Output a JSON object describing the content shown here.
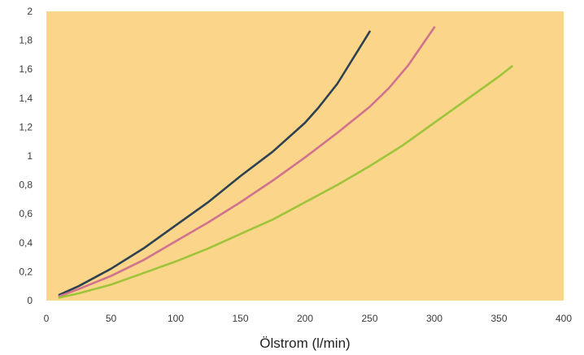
{
  "chart_data": {
    "type": "line",
    "title": "",
    "xlabel": "Ölstrom (l/min)",
    "ylabel": "",
    "xlim": [
      0,
      400
    ],
    "ylim": [
      0,
      2
    ],
    "x_ticks": [
      0,
      50,
      100,
      150,
      200,
      250,
      300,
      350,
      400
    ],
    "x_tick_labels": [
      "0",
      "50",
      "100",
      "150",
      "200",
      "250",
      "300",
      "350",
      "400"
    ],
    "y_ticks": [
      0,
      0.2,
      0.4,
      0.6,
      0.8,
      1,
      1.2,
      1.4,
      1.6,
      1.8,
      2
    ],
    "y_tick_labels": [
      "0",
      "0,2",
      "0,4",
      "0,6",
      "0,8",
      "1",
      "1,2",
      "1,4",
      "1,6",
      "1,8",
      "2"
    ],
    "grid": false,
    "legend": "none",
    "colors": {
      "plot_background": "#fbd58a",
      "series": [
        "#2e4150",
        "#d0728e",
        "#9ec43a"
      ]
    },
    "series": [
      {
        "x": [
          10,
          25,
          50,
          75,
          100,
          125,
          150,
          175,
          200,
          210,
          225,
          250
        ],
        "y": [
          0.04,
          0.1,
          0.22,
          0.36,
          0.52,
          0.68,
          0.86,
          1.03,
          1.23,
          1.33,
          1.5,
          1.86
        ]
      },
      {
        "x": [
          10,
          25,
          50,
          75,
          100,
          125,
          150,
          175,
          200,
          225,
          250,
          265,
          280,
          300
        ],
        "y": [
          0.03,
          0.08,
          0.17,
          0.28,
          0.41,
          0.54,
          0.68,
          0.83,
          0.99,
          1.16,
          1.34,
          1.47,
          1.63,
          1.89
        ]
      },
      {
        "x": [
          10,
          25,
          50,
          75,
          100,
          125,
          150,
          175,
          200,
          225,
          250,
          275,
          300,
          325,
          350,
          360
        ],
        "y": [
          0.02,
          0.05,
          0.11,
          0.19,
          0.27,
          0.36,
          0.46,
          0.56,
          0.68,
          0.8,
          0.93,
          1.07,
          1.23,
          1.39,
          1.55,
          1.62
        ]
      }
    ]
  }
}
